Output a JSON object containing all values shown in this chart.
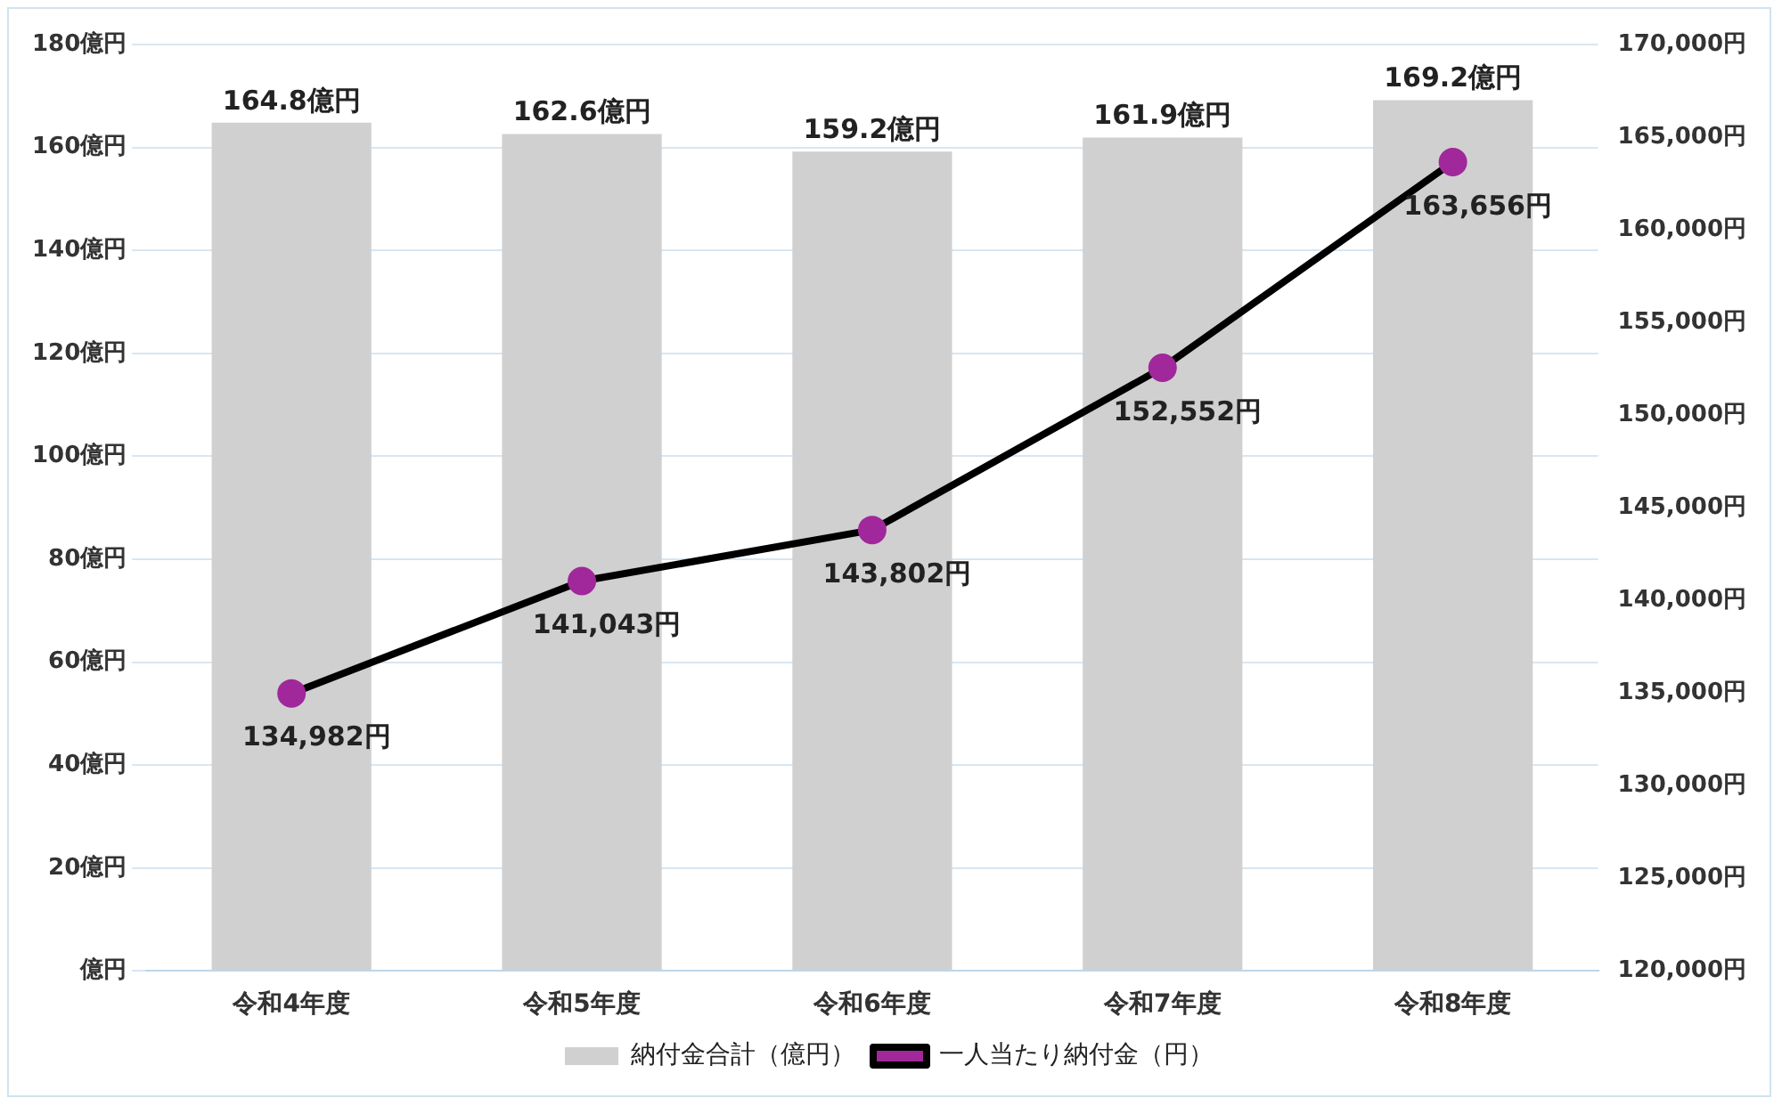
{
  "chart_data": {
    "type": "bar",
    "categories": [
      "令和4年度",
      "令和5年度",
      "令和6年度",
      "令和7年度",
      "令和8年度"
    ],
    "series": [
      {
        "name": "納付金合計（億円）",
        "color": "#d0d0d0",
        "values": [
          164.8,
          162.6,
          159.2,
          161.9,
          169.2
        ],
        "value_labels": [
          "164.8億円",
          "162.6億円",
          "159.2億円",
          "161.9億円",
          "169.2億円"
        ]
      },
      {
        "name": "一人当たり納付金（円）",
        "type": "line",
        "axis": "y2",
        "color": "#000000",
        "colors": [
          "#a0289a",
          "#a0289a",
          "#a0289a",
          "#a0289a",
          "#a0289a"
        ],
        "values": [
          134982,
          141043,
          143802,
          152552,
          163656
        ],
        "value_labels": [
          "134,982円",
          "141,043円",
          "143,802円",
          "152,552円",
          "163,656円"
        ]
      }
    ],
    "ylim": [
      0,
      180
    ],
    "yticks": [
      {
        "value": 0,
        "label": "億円"
      },
      {
        "value": 20,
        "label": "20億円"
      },
      {
        "value": 40,
        "label": "40億円"
      },
      {
        "value": 60,
        "label": "60億円"
      },
      {
        "value": 80,
        "label": "80億円"
      },
      {
        "value": 100,
        "label": "100億円"
      },
      {
        "value": 120,
        "label": "120億円"
      },
      {
        "value": 140,
        "label": "140億円"
      },
      {
        "value": 160,
        "label": "160億円"
      },
      {
        "value": 180,
        "label": "180億円"
      }
    ],
    "y2lim": [
      120000,
      170000
    ],
    "y2ticks": [
      {
        "value": 120000,
        "label": "120,000円"
      },
      {
        "value": 125000,
        "label": "125,000円"
      },
      {
        "value": 130000,
        "label": "130,000円"
      },
      {
        "value": 135000,
        "label": "135,000円"
      },
      {
        "value": 140000,
        "label": "140,000円"
      },
      {
        "value": 145000,
        "label": "145,000円"
      },
      {
        "value": 150000,
        "label": "150,000円"
      },
      {
        "value": 155000,
        "label": "155,000円"
      },
      {
        "value": 160000,
        "label": "160,000円"
      },
      {
        "value": 165000,
        "label": "165,000円"
      },
      {
        "value": 170000,
        "label": "170,000円"
      }
    ],
    "grid": "y",
    "legend": "bottom",
    "marker": "circle",
    "line_style": "solid"
  }
}
